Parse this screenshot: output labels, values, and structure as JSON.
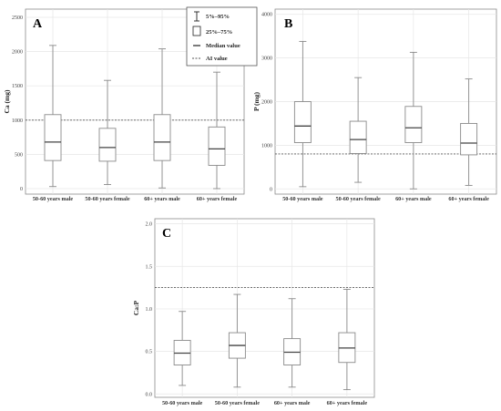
{
  "legend": {
    "whisker_label": "5%–95%",
    "box_label": "25%–75%",
    "median_label": "Median value",
    "ai_label": "AI value"
  },
  "chart_data": [
    {
      "type": "box",
      "letter": "A",
      "ylabel": "Ca (mg)",
      "ylim": [
        -80,
        2620
      ],
      "yticks": [
        0,
        500,
        1000,
        1500,
        2000,
        2500
      ],
      "ytick_labels": [
        "0",
        "500",
        "1000",
        "1500",
        "2000",
        "2500"
      ],
      "reference_line": 1000,
      "categories": [
        "50-60 years male",
        "50-60 years female",
        "60+ years male",
        "60+ years female"
      ],
      "boxes": [
        {
          "p5": 30,
          "q1": 410,
          "median": 680,
          "q3": 1080,
          "p95": 2090
        },
        {
          "p5": 60,
          "q1": 400,
          "median": 600,
          "q3": 880,
          "p95": 1580
        },
        {
          "p5": 10,
          "q1": 410,
          "median": 680,
          "q3": 1080,
          "p95": 2040
        },
        {
          "p5": 0,
          "q1": 340,
          "median": 580,
          "q3": 900,
          "p95": 1700
        }
      ]
    },
    {
      "type": "box",
      "letter": "B",
      "ylabel": "P (mg)",
      "ylim": [
        -120,
        4120
      ],
      "yticks": [
        0,
        1000,
        2000,
        3000,
        4000
      ],
      "ytick_labels": [
        "0",
        "1000",
        "2000",
        "3000",
        "4000"
      ],
      "reference_line": 800,
      "categories": [
        "50-60 years male",
        "50-60 years female",
        "60+ years male",
        "60+ years female"
      ],
      "boxes": [
        {
          "p5": 50,
          "q1": 1060,
          "median": 1440,
          "q3": 2000,
          "p95": 3380
        },
        {
          "p5": 150,
          "q1": 810,
          "median": 1130,
          "q3": 1550,
          "p95": 2550
        },
        {
          "p5": 0,
          "q1": 1060,
          "median": 1400,
          "q3": 1890,
          "p95": 3130
        },
        {
          "p5": 80,
          "q1": 780,
          "median": 1050,
          "q3": 1500,
          "p95": 2520
        }
      ]
    },
    {
      "type": "box",
      "letter": "C",
      "ylabel": "Ca:P",
      "ylim": [
        -0.04,
        2.06
      ],
      "yticks": [
        0.0,
        0.5,
        1.0,
        1.5,
        2.0
      ],
      "ytick_labels": [
        "0.0",
        "0.5",
        "1.0",
        "1.5",
        "2.0"
      ],
      "reference_line": 1.25,
      "categories": [
        "50-60 years male",
        "50-60 years female",
        "60+ years male",
        "60+ years female"
      ],
      "boxes": [
        {
          "p5": 0.1,
          "q1": 0.34,
          "median": 0.48,
          "q3": 0.63,
          "p95": 0.97
        },
        {
          "p5": 0.08,
          "q1": 0.42,
          "median": 0.57,
          "q3": 0.72,
          "p95": 1.17
        },
        {
          "p5": 0.08,
          "q1": 0.34,
          "median": 0.49,
          "q3": 0.65,
          "p95": 1.12
        },
        {
          "p5": 0.05,
          "q1": 0.37,
          "median": 0.54,
          "q3": 0.72,
          "p95": 1.23
        }
      ]
    }
  ]
}
